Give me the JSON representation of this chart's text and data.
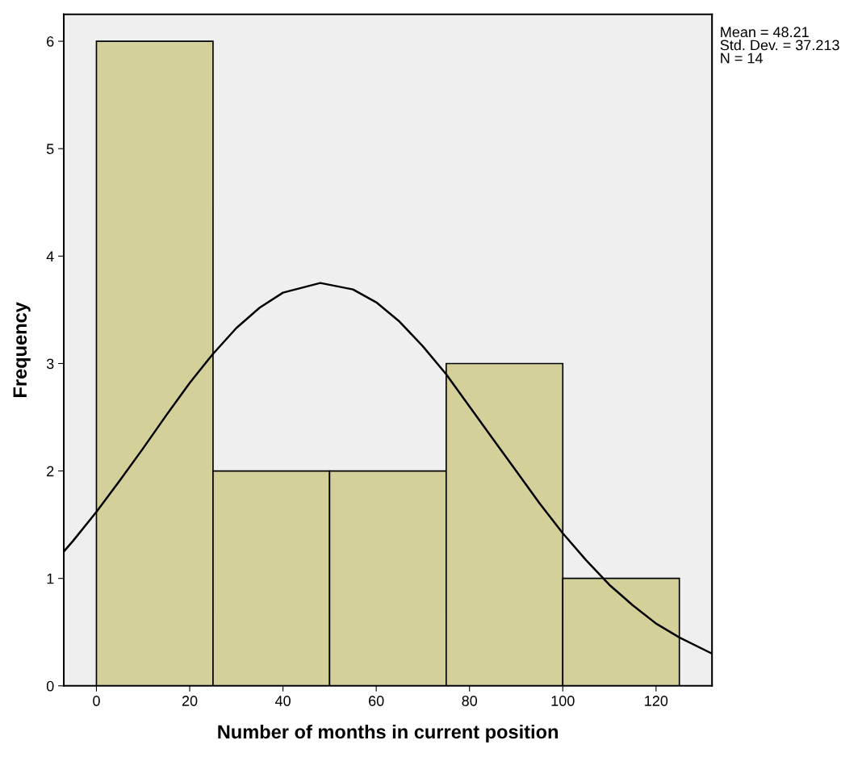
{
  "chart_data": {
    "type": "histogram",
    "xlabel": "Number of months in current position",
    "ylabel": "Frequency",
    "bins": [
      0,
      25,
      50,
      75,
      100,
      125
    ],
    "values": [
      6,
      2,
      2,
      3,
      1
    ],
    "color": "#d4d09a",
    "series": [
      {
        "type": "line",
        "color": "#000000",
        "x": [
          -7,
          -5,
          0,
          5,
          10,
          15,
          20,
          25,
          30,
          35,
          40,
          48,
          55,
          60,
          65,
          70,
          75,
          80,
          85,
          90,
          95,
          100,
          105,
          110,
          115,
          120,
          125,
          132
        ],
        "values": [
          1.25,
          1.35,
          1.62,
          1.91,
          2.21,
          2.52,
          2.82,
          3.09,
          3.33,
          3.52,
          3.66,
          3.75,
          3.69,
          3.57,
          3.39,
          3.16,
          2.9,
          2.6,
          2.3,
          2.0,
          1.7,
          1.42,
          1.17,
          0.94,
          0.75,
          0.58,
          0.45,
          0.3
        ]
      }
    ],
    "xlim": [
      -7,
      132
    ],
    "xticks": [
      0,
      20,
      40,
      60,
      80,
      100,
      120
    ],
    "ylim": [
      0,
      6.25
    ],
    "yticks": [
      0,
      1,
      2,
      3,
      4,
      5,
      6
    ],
    "grid": false,
    "annotations": [
      "Mean = 48.21\nStd. Dev. = 37.213\nN = 14"
    ]
  }
}
